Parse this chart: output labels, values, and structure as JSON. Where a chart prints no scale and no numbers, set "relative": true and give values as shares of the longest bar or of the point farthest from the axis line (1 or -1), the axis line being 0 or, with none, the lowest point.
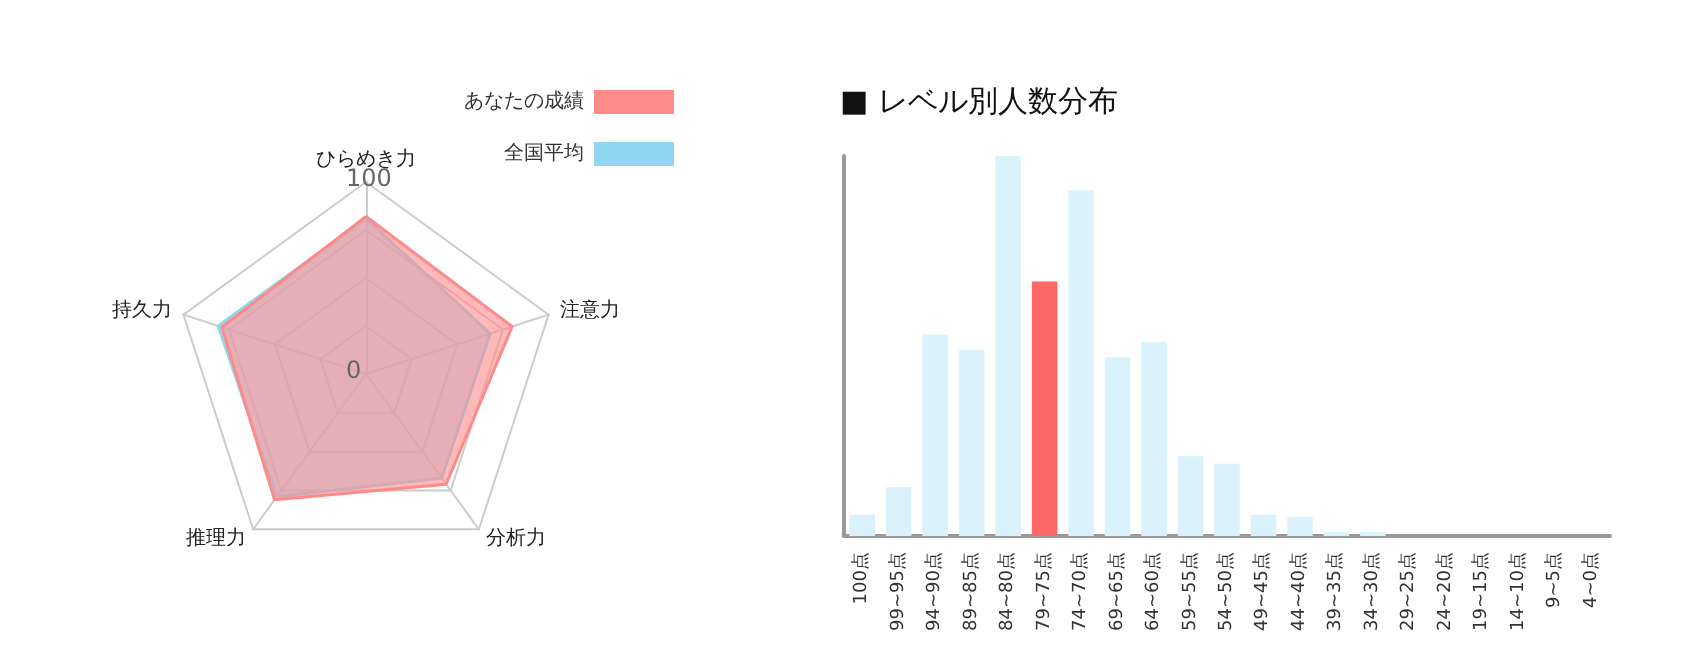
{
  "chart_data": [
    {
      "type": "radar",
      "categories": [
        "ひらめき力",
        "注意力",
        "分析力",
        "推理力",
        "持久力"
      ],
      "series": [
        {
          "name": "あなたの成績",
          "color": "#ff8a8a",
          "values": [
            82,
            80,
            71,
            81,
            79
          ]
        },
        {
          "name": "全国平均",
          "color": "#8fd6f2",
          "values": [
            81,
            68,
            67,
            79,
            81
          ]
        }
      ],
      "ylim": [
        0,
        100
      ],
      "yticks": [
        0,
        100
      ],
      "legend": "top right",
      "grid": true
    },
    {
      "type": "bar",
      "title": "■ レベル別人数分布",
      "relative": true,
      "tick_labels": "x",
      "legend": false,
      "categories": [
        "100点",
        "99~95点",
        "94~90点",
        "89~85点",
        "84~80点",
        "79~75点",
        "74~70点",
        "69~65点",
        "64~60点",
        "59~55点",
        "54~50点",
        "49~45点",
        "44~40点",
        "39~35点",
        "34~30点",
        "29~25点",
        "24~20点",
        "19~15点",
        "14~10点",
        "9~5点",
        "4~0点"
      ],
      "values": [
        0.056,
        0.128,
        0.53,
        0.49,
        1,
        0.67,
        0.91,
        0.47,
        0.51,
        0.21,
        0.19,
        0.056,
        0.05,
        0.01,
        0.01,
        null,
        null,
        null,
        null,
        null,
        null
      ],
      "colors": [
        "#d9f2fb",
        "#d9f2fb",
        "#d9f2fb",
        "#d9f2fb",
        "#d9f2fb",
        "#ff6666",
        "#d9f2fb",
        "#d9f2fb",
        "#d9f2fb",
        "#d9f2fb",
        "#d9f2fb",
        "#d9f2fb",
        "#d9f2fb",
        "#d9f2fb",
        "#d9f2fb",
        "#d9f2fb",
        "#d9f2fb",
        "#d9f2fb",
        "#d9f2fb",
        "#d9f2fb",
        "#d9f2fb"
      ]
    }
  ]
}
